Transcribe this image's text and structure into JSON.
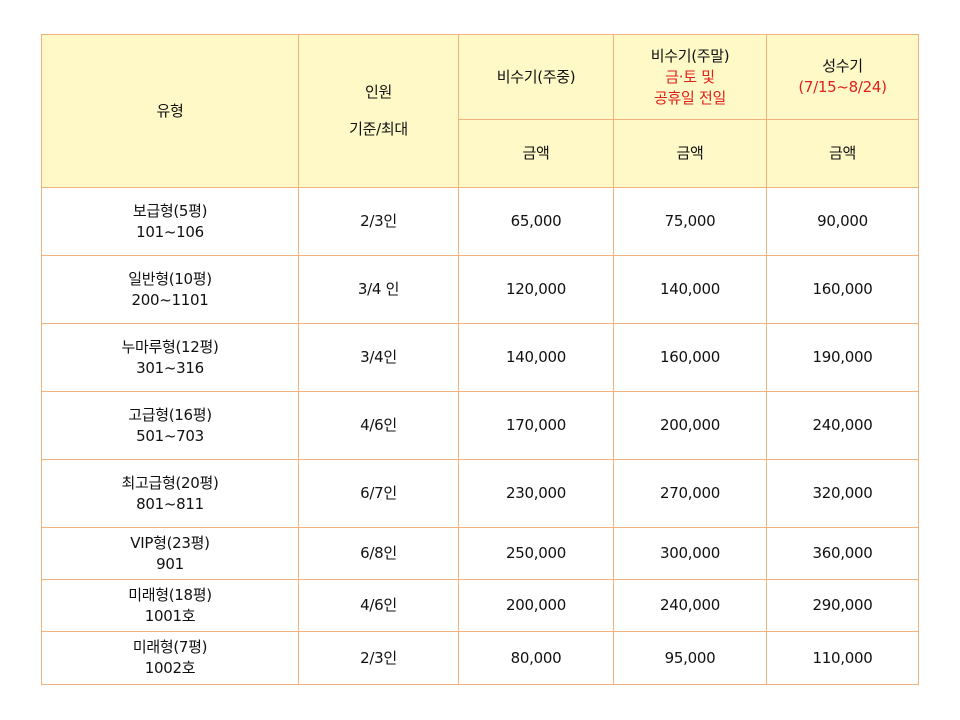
{
  "table": {
    "header": {
      "type_label": "유형",
      "people_line1": "인원",
      "people_line2": "기준/최대",
      "offpeak_weekday": "비수기(주중)",
      "offpeak_weekend_line1": "비수기(주말)",
      "offpeak_weekend_line2": "금·토 및",
      "offpeak_weekend_line3": "공휴일 전일",
      "peak_line1": "성수기",
      "peak_line2": "(7/15~8/24)",
      "amount_labels": [
        "금액",
        "금액",
        "금액"
      ]
    },
    "rows": [
      {
        "type": "보급형(5평)",
        "rooms": "101~106",
        "people": "2/3인",
        "weekday": "65,000",
        "weekend": "75,000",
        "peak": "90,000"
      },
      {
        "type": "일반형(10평)",
        "rooms": "200~1101",
        "people": "3/4 인",
        "weekday": "120,000",
        "weekend": "140,000",
        "peak": "160,000"
      },
      {
        "type": "누마루형(12평)",
        "rooms": "301~316",
        "people": "3/4인",
        "weekday": "140,000",
        "weekend": "160,000",
        "peak": "190,000"
      },
      {
        "type": "고급형(16평)",
        "rooms": "501~703",
        "people": "4/6인",
        "weekday": "170,000",
        "weekend": "200,000",
        "peak": "240,000"
      },
      {
        "type": "최고급형(20평)",
        "rooms": "801~811",
        "people": "6/7인",
        "weekday": "230,000",
        "weekend": "270,000",
        "peak": "320,000"
      },
      {
        "type": "VIP형(23평)",
        "rooms": "901",
        "people": "6/8인",
        "weekday": "250,000",
        "weekend": "300,000",
        "peak": "360,000"
      },
      {
        "type": "미래형(18평)",
        "rooms": "1001호",
        "people": "4/6인",
        "weekday": "200,000",
        "weekend": "240,000",
        "peak": "290,000"
      },
      {
        "type": "미래형(7평)",
        "rooms": "1002호",
        "people": "2/3인",
        "weekday": "80,000",
        "weekend": "95,000",
        "peak": "110,000"
      }
    ]
  },
  "colors": {
    "header_bg": "#fff9c8",
    "border": "#f2b27d",
    "highlight_text": "#e0201c"
  }
}
